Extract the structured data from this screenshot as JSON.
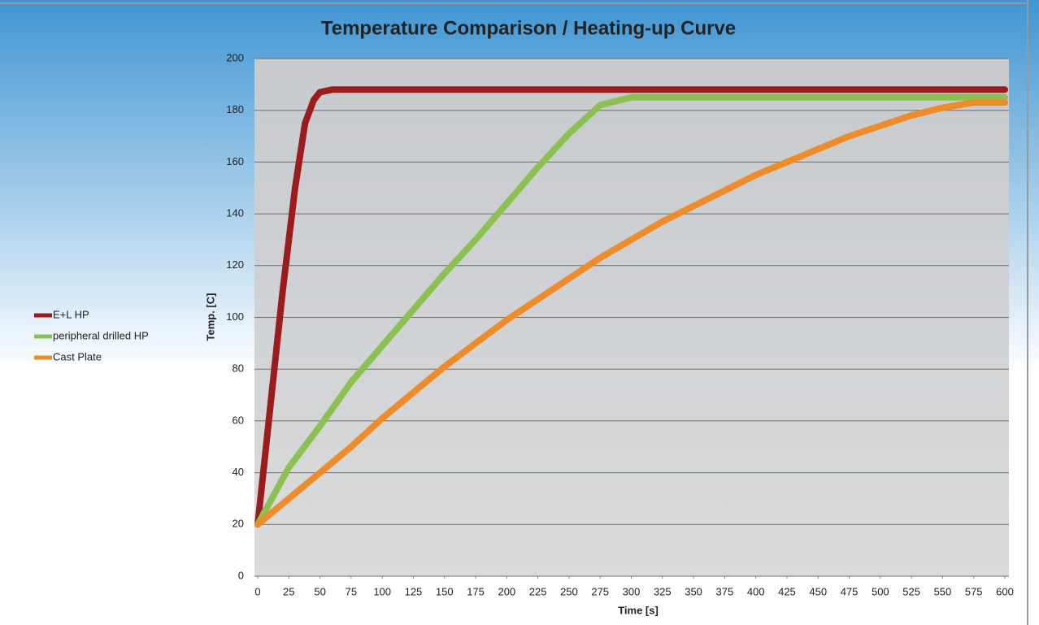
{
  "chart_data": {
    "type": "line",
    "title": "Temperature Comparison / Heating-up Curve",
    "xlabel": "Time [s]",
    "ylabel": "Temp. [C]",
    "xlim": [
      0,
      600
    ],
    "ylim": [
      0,
      200
    ],
    "xticks": [
      0,
      25,
      50,
      75,
      100,
      125,
      150,
      175,
      200,
      225,
      250,
      275,
      300,
      325,
      350,
      375,
      400,
      425,
      450,
      475,
      500,
      525,
      550,
      575,
      600
    ],
    "yticks": [
      0,
      20,
      40,
      60,
      80,
      100,
      120,
      140,
      160,
      180,
      200
    ],
    "grid": true,
    "legend": "left",
    "series": [
      {
        "name": "E+L HP",
        "color": "#9b1c1c",
        "x": [
          0,
          10,
          20,
          30,
          38,
          45,
          50,
          60,
          600
        ],
        "values": [
          20,
          65,
          110,
          150,
          175,
          184,
          187,
          188,
          188
        ]
      },
      {
        "name": "peripheral drilled HP",
        "color": "#8cc152",
        "x": [
          0,
          25,
          50,
          75,
          100,
          125,
          150,
          175,
          200,
          225,
          250,
          275,
          300,
          600
        ],
        "values": [
          20,
          42,
          58,
          75,
          89,
          103,
          117,
          130,
          144,
          158,
          171,
          182,
          185,
          185
        ]
      },
      {
        "name": "Cast Plate",
        "color": "#ee8c2a",
        "x": [
          0,
          25,
          50,
          75,
          100,
          125,
          150,
          175,
          200,
          225,
          250,
          275,
          300,
          325,
          350,
          375,
          400,
          425,
          450,
          475,
          500,
          525,
          550,
          575,
          600
        ],
        "values": [
          20,
          30,
          40,
          50,
          61,
          71,
          81,
          90,
          99,
          107,
          115,
          123,
          130,
          137,
          143,
          149,
          155,
          160,
          165,
          170,
          174,
          178,
          181,
          183,
          183
        ]
      }
    ]
  }
}
